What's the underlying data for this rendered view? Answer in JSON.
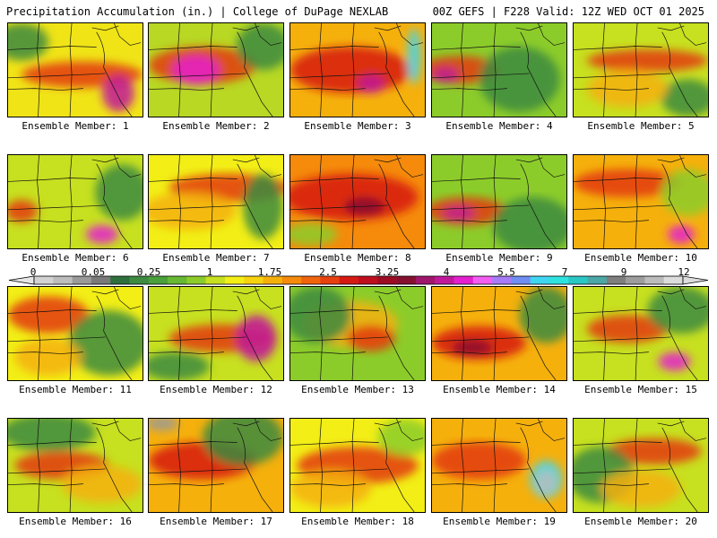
{
  "header": {
    "title_left": "Precipitation Accumulation (in.) | College of DuPage NEXLAB",
    "title_right": "00Z GEFS | F228 Valid: 12Z WED OCT 01 2025"
  },
  "colorbar": {
    "labels": [
      "0",
      "0.05",
      "0.25",
      "1",
      "1.75",
      "2.5",
      "3.25",
      "4",
      "5.5",
      "7",
      "9",
      "12"
    ],
    "colors": [
      "#d2d2d2",
      "#bdbdbd",
      "#9a9a9a",
      "#7a7a7a",
      "#2f6f3e",
      "#3d8a40",
      "#4aa03a",
      "#67b832",
      "#8ccc2a",
      "#c7e01f",
      "#f2ee16",
      "#f7d20f",
      "#f5b00c",
      "#f58a0b",
      "#ef640d",
      "#e9400f",
      "#d61a13",
      "#bf0f1f",
      "#9d0c23",
      "#86102f",
      "#a0166c",
      "#c1189a",
      "#e51fcf",
      "#f35df2",
      "#a77af7",
      "#6f8df3",
      "#3fd6f2",
      "#2ee3df",
      "#29c8c5",
      "#4aa8a6",
      "#7f7f7f",
      "#9d9d9d",
      "#bcbcbc",
      "#dcdcdc"
    ]
  },
  "members": [
    {
      "label": "Ensemble Member: 1"
    },
    {
      "label": "Ensemble Member: 2"
    },
    {
      "label": "Ensemble Member: 3"
    },
    {
      "label": "Ensemble Member: 4"
    },
    {
      "label": "Ensemble Member: 5"
    },
    {
      "label": "Ensemble Member: 6"
    },
    {
      "label": "Ensemble Member: 7"
    },
    {
      "label": "Ensemble Member: 8"
    },
    {
      "label": "Ensemble Member: 9"
    },
    {
      "label": "Ensemble Member: 10"
    },
    {
      "label": "Ensemble Member: 11"
    },
    {
      "label": "Ensemble Member: 12"
    },
    {
      "label": "Ensemble Member: 13"
    },
    {
      "label": "Ensemble Member: 14"
    },
    {
      "label": "Ensemble Member: 15"
    },
    {
      "label": "Ensemble Member: 16"
    },
    {
      "label": "Ensemble Member: 17"
    },
    {
      "label": "Ensemble Member: 18"
    },
    {
      "label": "Ensemble Member: 19"
    },
    {
      "label": "Ensemble Member: 20"
    }
  ]
}
